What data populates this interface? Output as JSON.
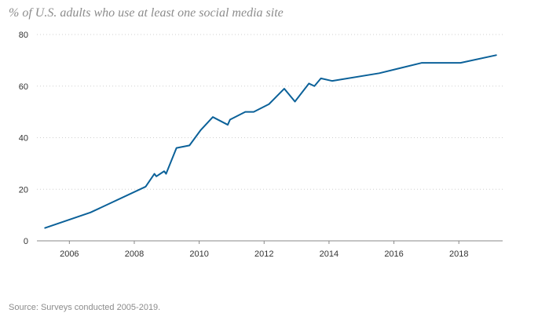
{
  "title": "% of U.S. adults who use at least one social media site",
  "source": "Source: Surveys conducted 2005-2019.",
  "colors": {
    "line": "#0b6199",
    "grid": "#cfcfcf",
    "axis": "#888888",
    "text": "#333333",
    "muted": "#8c8c8c"
  },
  "chart_data": {
    "type": "line",
    "title": "% of U.S. adults who use at least one social media site",
    "xlabel": "",
    "ylabel": "",
    "xlim": [
      2005,
      2019.35
    ],
    "ylim": [
      0,
      80
    ],
    "x_ticks": [
      2006,
      2008,
      2010,
      2012,
      2014,
      2016,
      2018
    ],
    "x_tick_labels": [
      "2006",
      "2008",
      "2010",
      "2012",
      "2014",
      "2016",
      "2018"
    ],
    "y_ticks": [
      0,
      20,
      40,
      60,
      80
    ],
    "y_tick_labels": [
      "0",
      "20",
      "40",
      "60",
      "80"
    ],
    "grid": "horizontal dotted",
    "legend": "none",
    "series": [
      {
        "points": [
          [
            2005.25,
            5
          ],
          [
            2006.65,
            11
          ],
          [
            2008.35,
            21
          ],
          [
            2008.62,
            26
          ],
          [
            2008.68,
            25
          ],
          [
            2008.92,
            27
          ],
          [
            2008.98,
            26
          ],
          [
            2009.3,
            36
          ],
          [
            2009.7,
            37
          ],
          [
            2010.05,
            43
          ],
          [
            2010.42,
            48
          ],
          [
            2010.88,
            45
          ],
          [
            2010.95,
            47
          ],
          [
            2011.42,
            50
          ],
          [
            2011.68,
            50
          ],
          [
            2012.15,
            53
          ],
          [
            2012.62,
            59
          ],
          [
            2012.95,
            54
          ],
          [
            2013.38,
            61
          ],
          [
            2013.55,
            60
          ],
          [
            2013.75,
            63
          ],
          [
            2014.1,
            62
          ],
          [
            2015.55,
            65
          ],
          [
            2016.85,
            69
          ],
          [
            2018.05,
            69
          ],
          [
            2019.15,
            72
          ]
        ]
      }
    ]
  }
}
